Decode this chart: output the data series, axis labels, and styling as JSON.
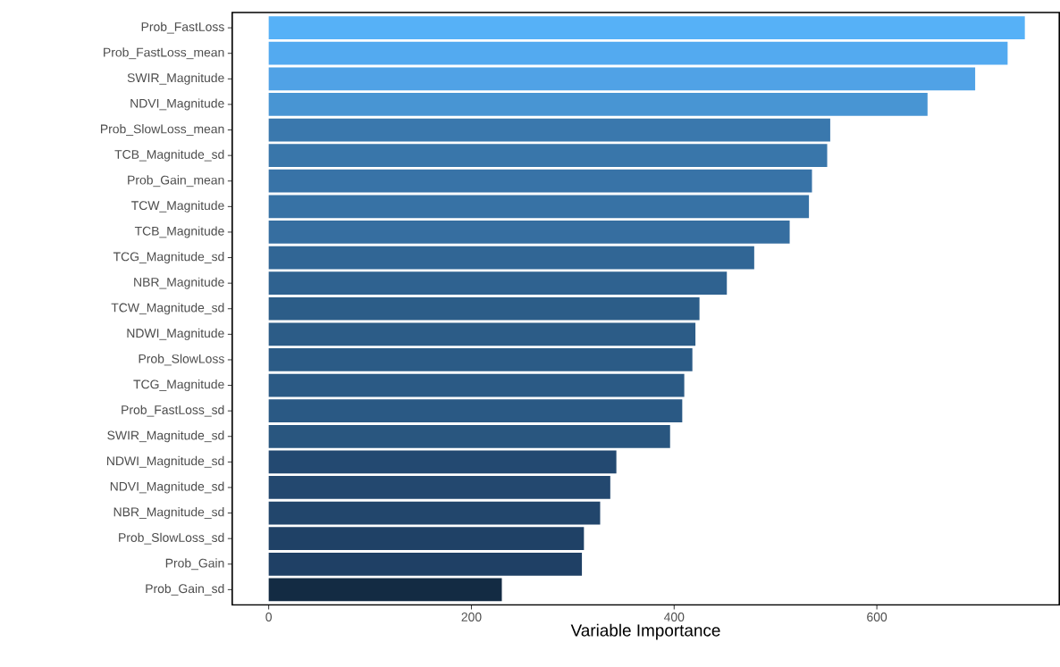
{
  "chart_data": {
    "type": "bar",
    "orientation": "horizontal",
    "xlabel": "Variable Importance",
    "categories": [
      "Prob_FastLoss",
      "Prob_FastLoss_mean",
      "SWIR_Magnitude",
      "NDVI_Magnitude",
      "Prob_SlowLoss_mean",
      "TCB_Magnitude_sd",
      "Prob_Gain_mean",
      "TCW_Magnitude",
      "TCB_Magnitude",
      "TCG_Magnitude_sd",
      "NBR_Magnitude",
      "TCW_Magnitude_sd",
      "NDWI_Magnitude",
      "Prob_SlowLoss",
      "TCG_Magnitude",
      "Prob_FastLoss_sd",
      "SWIR_Magnitude_sd",
      "NDWI_Magnitude_sd",
      "NDVI_Magnitude_sd",
      "NBR_Magnitude_sd",
      "Prob_SlowLoss_sd",
      "Prob_Gain",
      "Prob_Gain_sd"
    ],
    "values": [
      746,
      729,
      697,
      650,
      554,
      551,
      536,
      533,
      514,
      479,
      452,
      425,
      421,
      418,
      410,
      408,
      396,
      343,
      337,
      327,
      311,
      309,
      230
    ],
    "colors": [
      "#56b1f7",
      "#53aaf0",
      "#50a2e6",
      "#4895d3",
      "#3a78ad",
      "#3976aa",
      "#3873a7",
      "#3772a5",
      "#366ea0",
      "#316695",
      "#2f6290",
      "#2c5d88",
      "#2c5c87",
      "#2b5b86",
      "#2b5a85",
      "#2a5984",
      "#29567f",
      "#234971",
      "#23486f",
      "#22466c",
      "#1f4166",
      "#1f4065",
      "#132b43"
    ],
    "xlim": [
      -36,
      780
    ],
    "xticks": [
      0,
      200,
      400,
      600
    ]
  }
}
